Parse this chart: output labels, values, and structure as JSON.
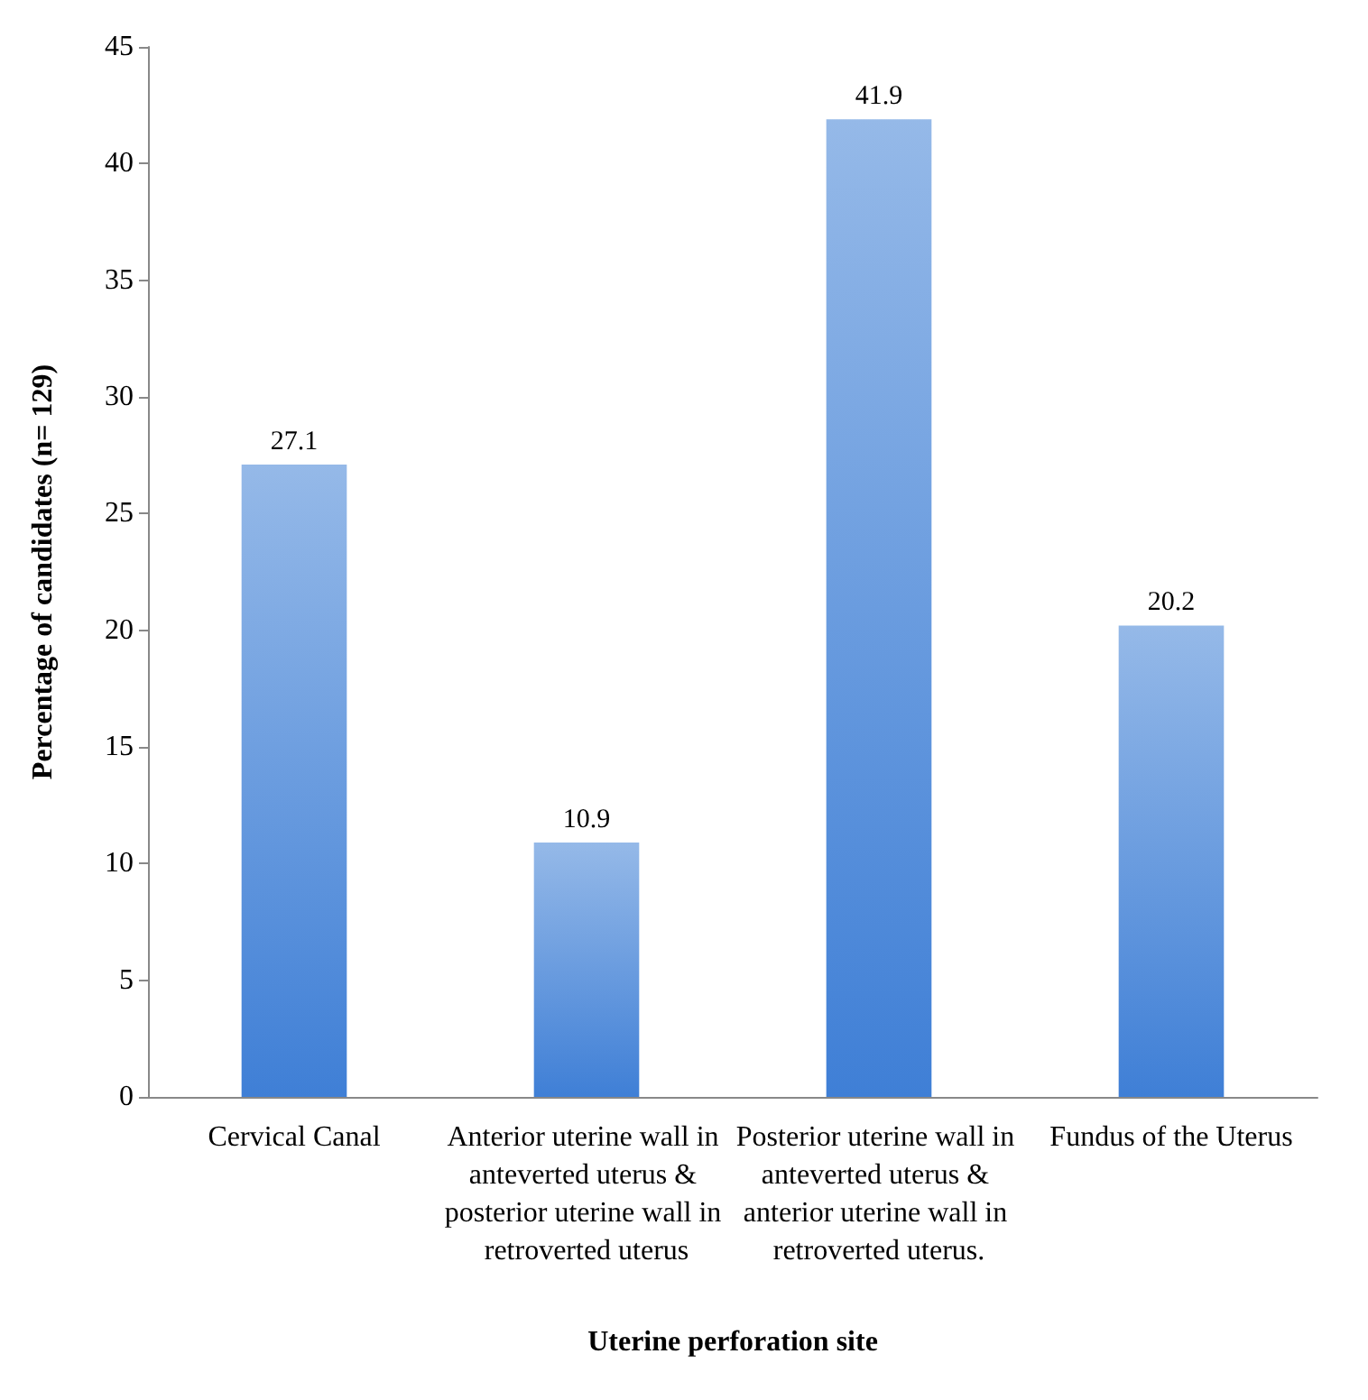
{
  "chart_data": {
    "type": "bar",
    "xlabel": "Uterine perforation site",
    "ylabel": "Percentage of candidates (n= 129)",
    "categories": [
      "Cervical Canal",
      "Anterior uterine wall in anteverted uterus & posterior uterine wall in retroverted uterus",
      "Posterior uterine wall in anteverted uterus & anterior uterine wall in retroverted uterus.",
      "Fundus of the Uterus"
    ],
    "values": [
      27.1,
      10.9,
      41.9,
      20.2
    ],
    "color": "#3f7fd6",
    "ylim": [
      0,
      45
    ],
    "yticks": [
      0,
      5,
      10,
      15,
      20,
      25,
      30,
      35,
      40,
      45
    ],
    "grid": false,
    "data_labels": true
  }
}
